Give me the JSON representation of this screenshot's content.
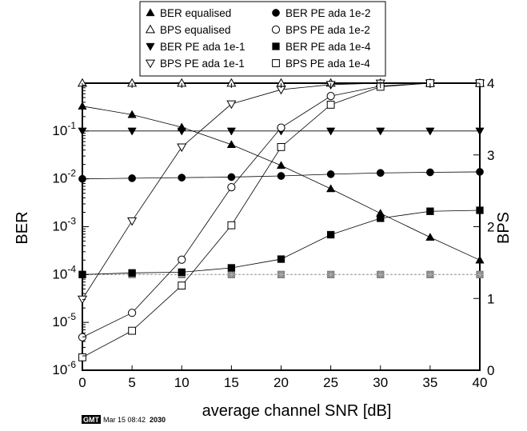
{
  "chart_data": {
    "type": "line",
    "xlabel": "average channel SNR [dB]",
    "ylabel_left": "BER",
    "ylabel_right": "BPS",
    "x": [
      0,
      5,
      10,
      15,
      20,
      25,
      30,
      35,
      40
    ],
    "xlim": [
      0,
      40
    ],
    "x_ticks": [
      "0",
      "5",
      "10",
      "15",
      "20",
      "25",
      "30",
      "35",
      "40"
    ],
    "ylim_left_log10": [
      -6,
      0
    ],
    "y_ticks_left": [
      {
        "base": "10",
        "exp": "-1",
        "value": -1
      },
      {
        "base": "10",
        "exp": "-2",
        "value": -2
      },
      {
        "base": "10",
        "exp": "-3",
        "value": -3
      },
      {
        "base": "10",
        "exp": "-4",
        "value": -4
      },
      {
        "base": "10",
        "exp": "-5",
        "value": -5
      },
      {
        "base": "10",
        "exp": "-6",
        "value": -6
      }
    ],
    "ylim_right": [
      0,
      4
    ],
    "y_ticks_right": [
      "0",
      "1",
      "2",
      "3",
      "4"
    ],
    "legend_position": "top-center",
    "grid": false,
    "series": [
      {
        "name": "BER equalised",
        "axis": "left",
        "marker": "triangle-up-filled",
        "values": [
          0.33,
          0.22,
          0.12,
          0.052,
          0.019,
          0.0062,
          0.0019,
          0.0006,
          0.0002
        ]
      },
      {
        "name": "BPS equalised",
        "axis": "right",
        "marker": "triangle-up-open",
        "values": [
          4,
          4,
          4,
          4,
          4,
          4,
          4,
          4,
          4
        ]
      },
      {
        "name": "BER PE ada 1e-1",
        "axis": "left",
        "marker": "triangle-down-filled",
        "values": [
          0.1,
          0.1,
          0.1,
          0.1,
          0.1,
          0.1,
          0.1,
          0.1,
          0.1
        ]
      },
      {
        "name": "BPS PE ada 1e-1",
        "axis": "right",
        "marker": "triangle-down-open",
        "values": [
          0.99,
          2.08,
          3.11,
          3.71,
          3.91,
          3.98,
          4.0,
          4.0,
          4.0
        ]
      },
      {
        "name": "BER PE ada 1e-2",
        "axis": "left",
        "marker": "circle-filled",
        "values": [
          0.01,
          0.0103,
          0.0106,
          0.0109,
          0.0115,
          0.0125,
          0.0133,
          0.0137,
          0.014
        ]
      },
      {
        "name": "BPS PE ada 1e-2",
        "axis": "right",
        "marker": "circle-open",
        "values": [
          0.46,
          0.8,
          1.54,
          2.55,
          3.38,
          3.82,
          3.96,
          4.0,
          4.0
        ]
      },
      {
        "name": "BER PE ada 1e-4",
        "axis": "left",
        "marker": "square-filled",
        "values": [
          0.0001,
          0.000108,
          0.000112,
          0.000138,
          0.00021,
          0.00068,
          0.0015,
          0.0021,
          0.0022
        ]
      },
      {
        "name": "BPS PE ada 1e-4",
        "axis": "right",
        "marker": "square-open",
        "values": [
          0.18,
          0.55,
          1.18,
          2.02,
          3.11,
          3.7,
          3.95,
          4.0,
          4.0
        ]
      }
    ],
    "extra_lines": [
      {
        "axis": "left",
        "marker": "square-filled-gray",
        "color": "#808080",
        "values": [
          0.0001,
          0.0001,
          0.0001,
          0.0001,
          0.0001,
          0.0001,
          0.0001,
          0.0001,
          0.0001
        ]
      },
      {
        "axis": "left",
        "marker": "star-gray",
        "color": "#aaaaaa",
        "values": [
          0.0001,
          0.0001,
          0.0001,
          0.0001,
          0.0001,
          0.0001,
          0.0001,
          0.0001,
          0.0001
        ]
      }
    ]
  },
  "stamp": {
    "box_text": "GMT",
    "date": "Mar 15 08:42",
    "year": "2030"
  },
  "colors": {
    "axis": "#000000",
    "series": "#000000",
    "gray_marker": "#808080"
  }
}
